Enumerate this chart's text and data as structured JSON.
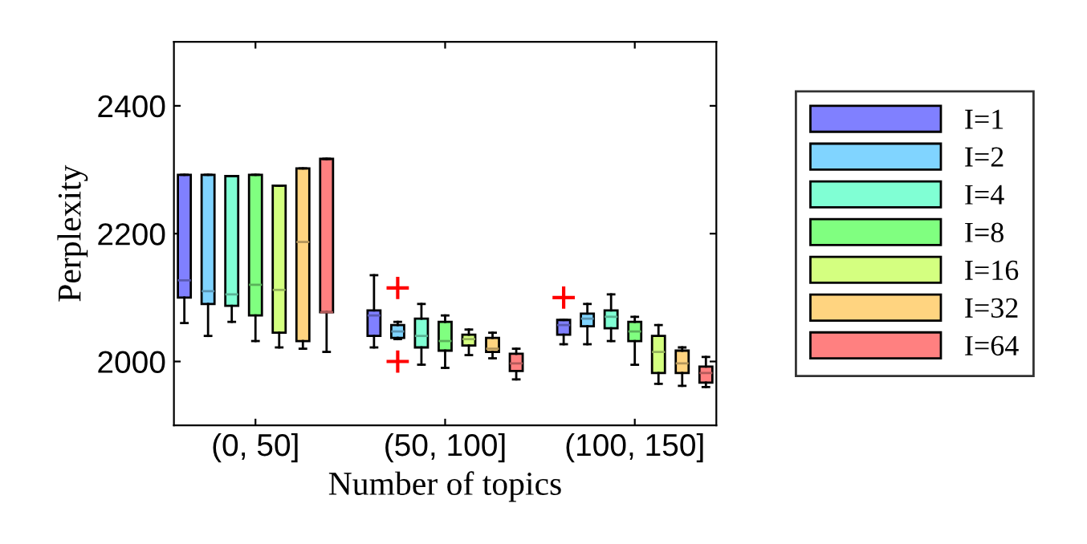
{
  "chart_data": {
    "type": "box",
    "xlabel": "Number of topics",
    "ylabel": "Perplexity",
    "categories": [
      "(0, 50]",
      "(50, 100]",
      "(100, 150]"
    ],
    "ylim": [
      1900,
      2500
    ],
    "yticks": [
      2000,
      2200,
      2400
    ],
    "legend": "right",
    "marker": "cross",
    "series": [
      {
        "name": "I=1",
        "color": "#8080ff",
        "boxes": [
          {
            "low": 2060,
            "q1": 2100,
            "median": 2127,
            "q3": 2292,
            "high": 2292
          },
          {
            "low": 2022,
            "q1": 2040,
            "median": 2072,
            "q3": 2080,
            "high": 2135
          },
          {
            "low": 2027,
            "q1": 2042,
            "median": 2057,
            "q3": 2065,
            "high": 2065,
            "outliers": [
              2100
            ]
          }
        ]
      },
      {
        "name": "I=2",
        "color": "#80d4ff",
        "boxes": [
          {
            "low": 2040,
            "q1": 2090,
            "median": 2110,
            "q3": 2292,
            "high": 2292
          },
          {
            "low": 2035,
            "q1": 2037,
            "median": 2047,
            "q3": 2057,
            "high": 2062,
            "outliers": [
              2115,
              2000
            ]
          },
          {
            "low": 2027,
            "q1": 2055,
            "median": 2067,
            "q3": 2075,
            "high": 2090
          }
        ]
      },
      {
        "name": "I=4",
        "color": "#80ffd4",
        "boxes": [
          {
            "low": 2062,
            "q1": 2087,
            "median": 2105,
            "q3": 2290,
            "high": 2290
          },
          {
            "low": 1995,
            "q1": 2022,
            "median": 2040,
            "q3": 2067,
            "high": 2090
          },
          {
            "low": 2032,
            "q1": 2052,
            "median": 2070,
            "q3": 2080,
            "high": 2105
          }
        ]
      },
      {
        "name": "I=8",
        "color": "#80ff80",
        "boxes": [
          {
            "low": 2032,
            "q1": 2072,
            "median": 2120,
            "q3": 2292,
            "high": 2292
          },
          {
            "low": 1990,
            "q1": 2017,
            "median": 2032,
            "q3": 2062,
            "high": 2072
          },
          {
            "low": 1995,
            "q1": 2032,
            "median": 2047,
            "q3": 2062,
            "high": 2070
          }
        ]
      },
      {
        "name": "I=16",
        "color": "#d4ff80",
        "boxes": [
          {
            "low": 2022,
            "q1": 2045,
            "median": 2112,
            "q3": 2275,
            "high": 2275
          },
          {
            "low": 2010,
            "q1": 2025,
            "median": 2035,
            "q3": 2042,
            "high": 2050
          },
          {
            "low": 1965,
            "q1": 1982,
            "median": 2015,
            "q3": 2040,
            "high": 2057
          }
        ]
      },
      {
        "name": "I=32",
        "color": "#ffd480",
        "boxes": [
          {
            "low": 2020,
            "q1": 2032,
            "median": 2187,
            "q3": 2302,
            "high": 2302
          },
          {
            "low": 2005,
            "q1": 2015,
            "median": 2020,
            "q3": 2037,
            "high": 2045
          },
          {
            "low": 1962,
            "q1": 1982,
            "median": 1997,
            "q3": 2017,
            "high": 2022
          }
        ]
      },
      {
        "name": "I=64",
        "color": "#ff8080",
        "boxes": [
          {
            "low": 2015,
            "q1": 2077,
            "median": 2077,
            "q3": 2317,
            "high": 2317
          },
          {
            "low": 1972,
            "q1": 1985,
            "median": 1997,
            "q3": 2012,
            "high": 2020
          },
          {
            "low": 1960,
            "q1": 1967,
            "median": 1982,
            "q3": 1992,
            "high": 2007
          }
        ]
      }
    ]
  }
}
